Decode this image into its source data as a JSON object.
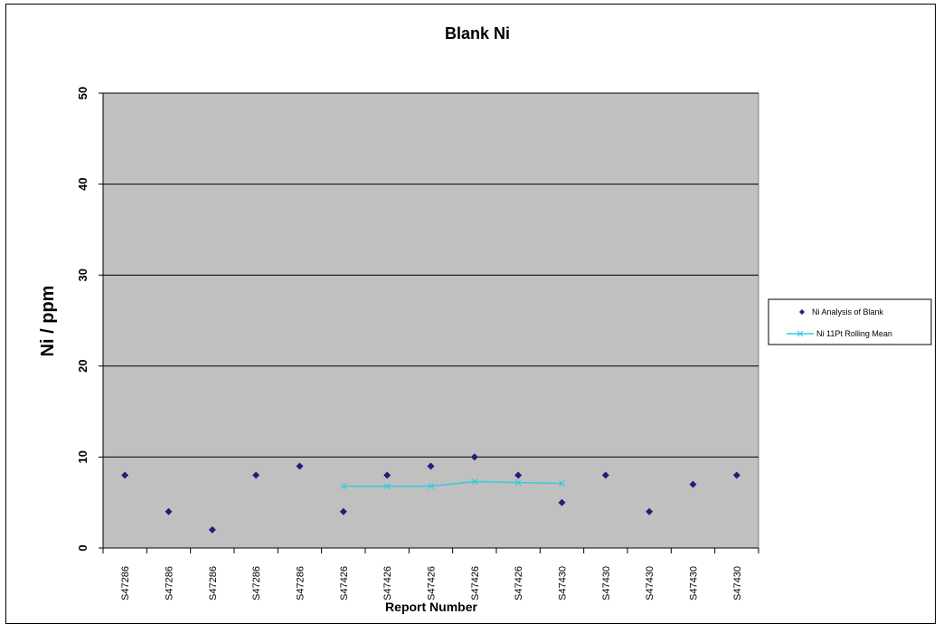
{
  "chart_data": {
    "type": "scatter",
    "title": "Blank Ni",
    "xlabel": "Report Number",
    "ylabel": "Ni / ppm",
    "categories": [
      "S47286",
      "S47286",
      "S47286",
      "S47286",
      "S47286",
      "S47426",
      "S47426",
      "S47426",
      "S47426",
      "S47426",
      "S47430",
      "S47430",
      "S47430",
      "S47430",
      "S47430"
    ],
    "ylim": [
      0,
      50
    ],
    "yticks": [
      0,
      10,
      20,
      30,
      40,
      50
    ],
    "grid": true,
    "legend_position": "right",
    "series": [
      {
        "name": "Ni Analysis of Blank",
        "type": "scatter",
        "marker": "diamond",
        "color": "#1f1f7a",
        "values": [
          8,
          4,
          2,
          8,
          9,
          4,
          8,
          9,
          10,
          8,
          5,
          8,
          4,
          7,
          8
        ]
      },
      {
        "name": "Ni 11Pt Rolling Mean",
        "type": "line",
        "marker": "x",
        "color": "#33ccdd",
        "values": [
          null,
          null,
          null,
          null,
          null,
          6.8,
          6.8,
          6.8,
          7.3,
          7.2,
          7.1,
          null,
          null,
          null,
          null
        ]
      }
    ],
    "plot_background": "#c0c0c0"
  }
}
